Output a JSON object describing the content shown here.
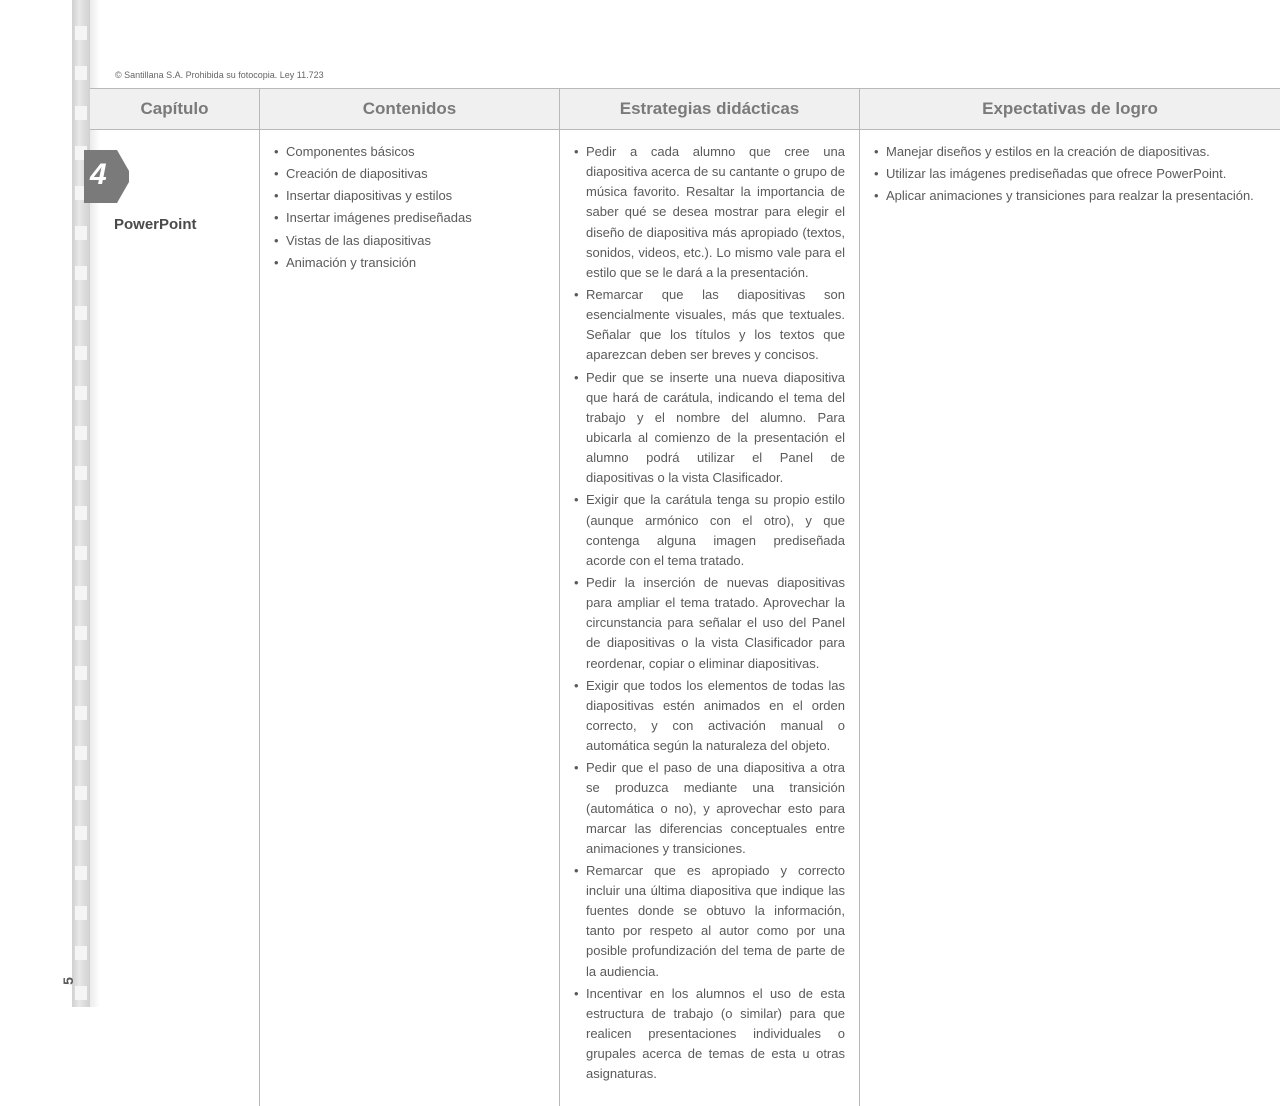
{
  "copyright": "© Santillana S.A. Prohibida su fotocopia. Ley 11.723",
  "page_number": "5",
  "columns": {
    "c1": "Capítulo",
    "c2": "Contenidos",
    "c3": "Estrategias didácticas",
    "c4": "Expectativas de logro"
  },
  "chapter": {
    "number": "4",
    "title": "PowerPoint"
  },
  "contents": {
    "i1": "Componentes básicos",
    "i2": "Creación de diapositivas",
    "i3": "Insertar diapositivas y estilos",
    "i4": "Insertar imágenes prediseñadas",
    "i5": "Vistas de las diapositivas",
    "i6": "Animación y transición"
  },
  "strategies": {
    "i1": "Pedir a cada alumno que cree una diapositiva acerca de su cantante o grupo de música favorito. Resaltar la importancia de saber qué se desea mostrar para elegir el diseño de diapositiva más apropiado (textos, sonidos, videos, etc.). Lo mismo vale para el estilo que se le dará a la presentación.",
    "i2": "Remarcar que las diapositivas son esencialmente visuales, más que textuales. Señalar que los títulos y los textos que aparezcan deben ser breves y concisos.",
    "i3": "Pedir que se inserte una nueva diapositiva que hará de carátula, indicando el tema del trabajo y el nombre del alumno. Para ubicarla al comienzo de la presentación el alumno podrá utilizar el Panel de diapositivas o la vista Clasificador.",
    "i4": "Exigir que la carátula tenga su propio estilo (aunque armónico con el otro), y que contenga alguna imagen prediseñada acorde con el tema tratado.",
    "i5": "Pedir la inserción de nuevas diapositivas para ampliar el tema tratado. Aprovechar la circunstancia para señalar el uso del Panel de diapositivas o la vista Clasificador para reordenar, copiar o eliminar diapositivas.",
    "i6": "Exigir que todos los elementos de todas las diapositivas estén animados en el orden correcto, y con activación manual o automática según la naturaleza del objeto.",
    "i7": "Pedir que el paso de una diapositiva a otra se produzca mediante una transición (automática o no), y aprovechar esto para marcar las diferencias conceptuales entre animaciones y transiciones.",
    "i8": "Remarcar que es apropiado y correcto incluir una última diapositiva que indique las fuentes donde se obtuvo la información, tanto por respeto al autor como por una posible profundización del tema de parte de la audiencia.",
    "i9": "Incentivar en los alumnos el uso de esta estructura de trabajo (o similar) para que realicen presentaciones individuales o grupales acerca de temas de esta u otras asignaturas."
  },
  "expectations": {
    "i1": "Manejar diseños y estilos en la creación de diapositivas.",
    "i2": "Utilizar las imágenes prediseñadas que ofrece PowerPoint.",
    "i3": "Aplicar animaciones y transiciones para realzar la presentación."
  }
}
